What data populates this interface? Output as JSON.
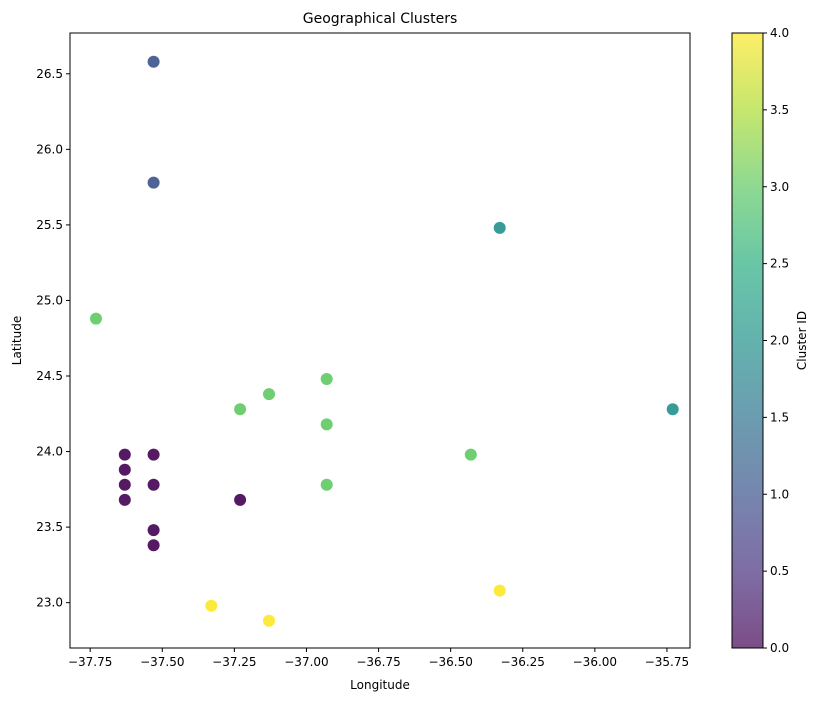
{
  "chart_data": {
    "type": "scatter",
    "title": "Geographical Clusters",
    "xlabel": "Longitude",
    "ylabel": "Latitude",
    "xlim": [
      -37.82,
      -35.67
    ],
    "ylim": [
      22.7,
      26.77
    ],
    "xticks": [
      -37.75,
      -37.5,
      -37.25,
      -37.0,
      -36.75,
      -36.5,
      -36.25,
      -36.0,
      -35.75
    ],
    "xtick_labels": [
      "−37.75",
      "−37.50",
      "−37.25",
      "−37.00",
      "−36.75",
      "−36.50",
      "−36.25",
      "−36.00",
      "−35.75"
    ],
    "yticks": [
      23.0,
      23.5,
      24.0,
      24.5,
      25.0,
      25.5,
      26.0,
      26.5
    ],
    "ytick_labels": [
      "23.0",
      "23.5",
      "24.0",
      "24.5",
      "25.0",
      "25.5",
      "26.0",
      "26.5"
    ],
    "grid": false,
    "colorbar": {
      "label": "Cluster ID",
      "colormap": "viridis",
      "range": [
        0.0,
        4.0
      ],
      "ticks": [
        0.0,
        0.5,
        1.0,
        1.5,
        2.0,
        2.5,
        3.0,
        3.5,
        4.0
      ],
      "tick_labels": [
        "0.0",
        "0.5",
        "1.0",
        "1.5",
        "2.0",
        "2.5",
        "3.0",
        "3.5",
        "4.0"
      ]
    },
    "colors": {
      "0": "#440154",
      "1": "#3b528b",
      "2": "#21918c",
      "3": "#5ec962",
      "4": "#fde725"
    },
    "points": [
      {
        "x": -37.63,
        "y": 23.98,
        "cluster": 0
      },
      {
        "x": -37.63,
        "y": 23.88,
        "cluster": 0
      },
      {
        "x": -37.63,
        "y": 23.78,
        "cluster": 0
      },
      {
        "x": -37.63,
        "y": 23.68,
        "cluster": 0
      },
      {
        "x": -37.53,
        "y": 23.98,
        "cluster": 0
      },
      {
        "x": -37.53,
        "y": 23.78,
        "cluster": 0
      },
      {
        "x": -37.53,
        "y": 23.48,
        "cluster": 0
      },
      {
        "x": -37.53,
        "y": 23.38,
        "cluster": 0
      },
      {
        "x": -37.23,
        "y": 23.68,
        "cluster": 0
      },
      {
        "x": -37.53,
        "y": 26.58,
        "cluster": 1
      },
      {
        "x": -37.53,
        "y": 25.78,
        "cluster": 1
      },
      {
        "x": -36.33,
        "y": 25.48,
        "cluster": 2
      },
      {
        "x": -35.73,
        "y": 24.28,
        "cluster": 2
      },
      {
        "x": -37.73,
        "y": 24.88,
        "cluster": 3
      },
      {
        "x": -37.23,
        "y": 24.28,
        "cluster": 3
      },
      {
        "x": -37.13,
        "y": 24.38,
        "cluster": 3
      },
      {
        "x": -36.93,
        "y": 24.48,
        "cluster": 3
      },
      {
        "x": -36.93,
        "y": 24.18,
        "cluster": 3
      },
      {
        "x": -36.93,
        "y": 23.78,
        "cluster": 3
      },
      {
        "x": -36.43,
        "y": 23.98,
        "cluster": 3
      },
      {
        "x": -37.33,
        "y": 22.98,
        "cluster": 4
      },
      {
        "x": -37.13,
        "y": 22.88,
        "cluster": 4
      },
      {
        "x": -36.33,
        "y": 23.08,
        "cluster": 4
      }
    ]
  }
}
